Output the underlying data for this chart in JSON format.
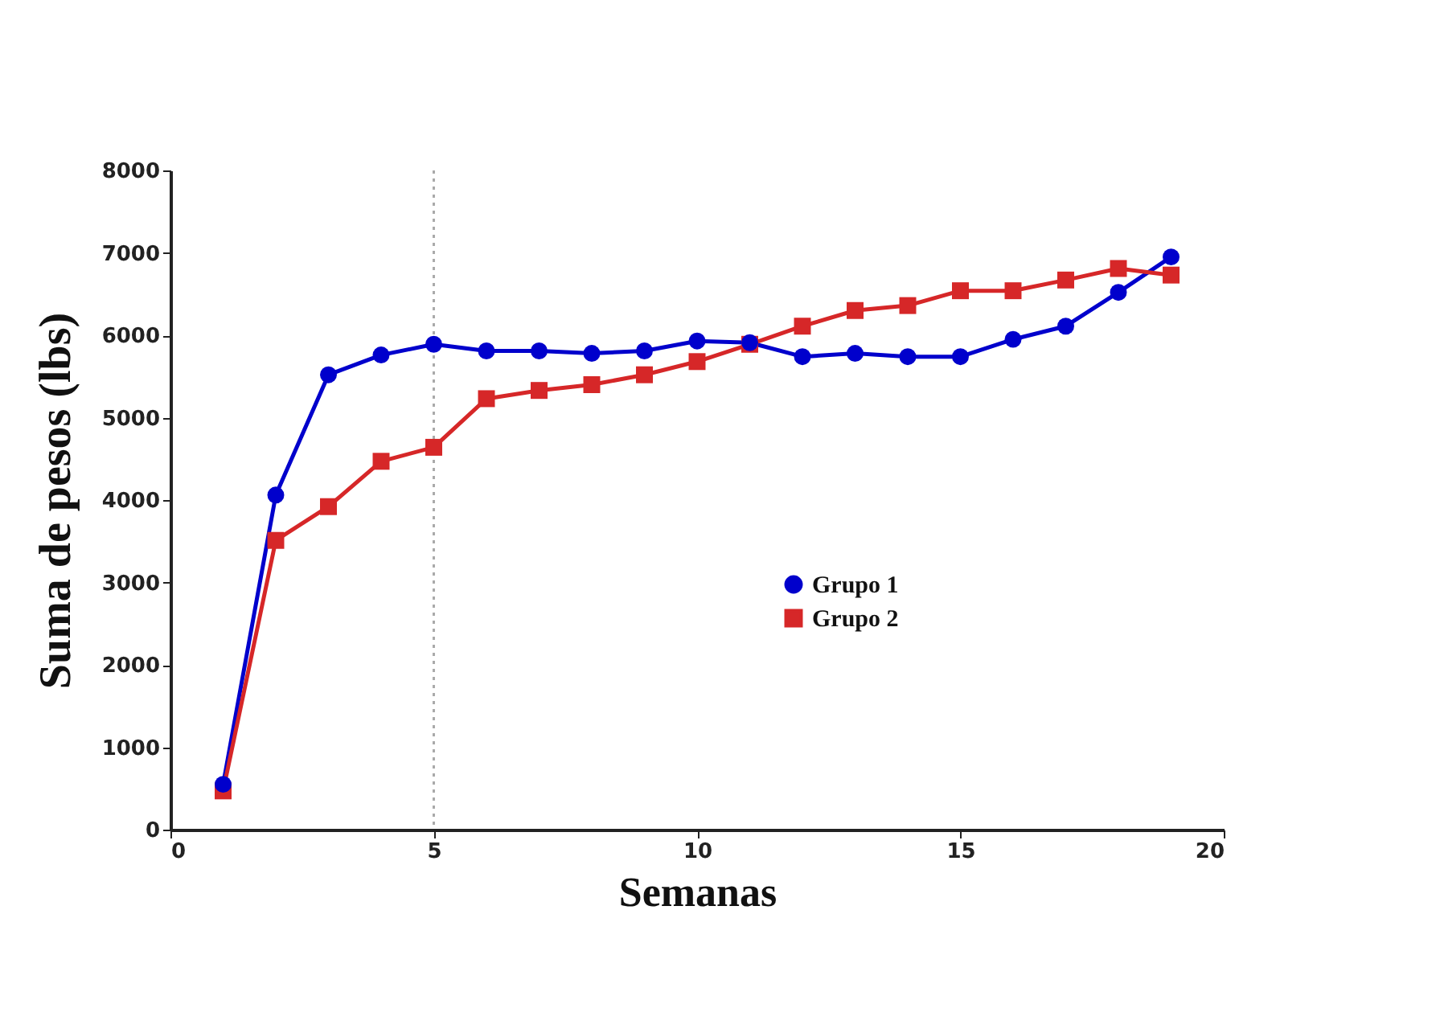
{
  "chart_data": {
    "type": "line",
    "xlabel": "Semanas",
    "ylabel": "Suma de pesos   (lbs)",
    "x": [
      1,
      2,
      3,
      4,
      5,
      6,
      7,
      8,
      9,
      10,
      11,
      12,
      13,
      14,
      15,
      16,
      17,
      18,
      19
    ],
    "series": [
      {
        "name": "Grupo 1",
        "color": "#0000cc",
        "marker": "circle",
        "values": [
          550,
          4060,
          5520,
          5760,
          5890,
          5810,
          5810,
          5780,
          5810,
          5930,
          5910,
          5740,
          5780,
          5740,
          5740,
          5950,
          6110,
          6520,
          6950
        ]
      },
      {
        "name": "Grupo 2",
        "color": "#d62728",
        "marker": "square",
        "values": [
          470,
          3510,
          3920,
          4470,
          4640,
          5230,
          5330,
          5400,
          5520,
          5680,
          5890,
          6110,
          6300,
          6360,
          6540,
          6540,
          6670,
          6810,
          6730
        ]
      }
    ],
    "xlim": [
      0,
      20
    ],
    "xticks": [
      0,
      5,
      10,
      15,
      20
    ],
    "ylim": [
      0,
      8000
    ],
    "yticks": [
      0,
      1000,
      2000,
      3000,
      4000,
      5000,
      6000,
      7000,
      8000
    ],
    "ref_lines": [
      {
        "axis": "x",
        "value": 5,
        "color": "#aaaaaa",
        "line_style": "dotted"
      }
    ],
    "grid": false,
    "legend": "right"
  }
}
